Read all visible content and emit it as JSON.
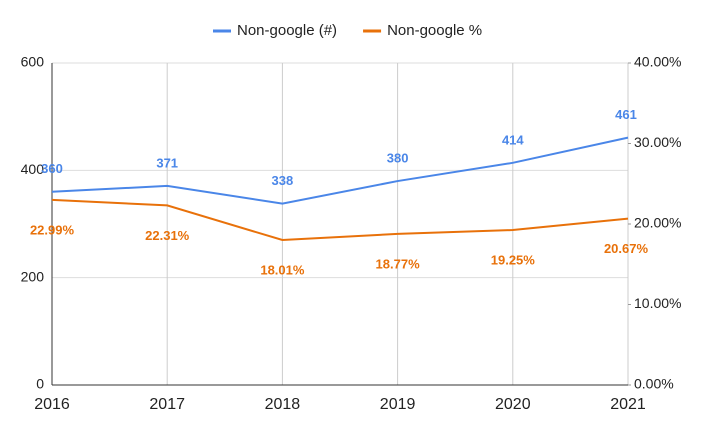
{
  "chart_data": {
    "type": "line",
    "x": [
      2016,
      2017,
      2018,
      2019,
      2020,
      2021
    ],
    "xlim": [
      2016,
      2021
    ],
    "xticks": [
      2016,
      2017,
      2018,
      2019,
      2020,
      2021
    ],
    "ylim": [
      0,
      600
    ],
    "yticks": [
      0,
      200,
      400,
      600
    ],
    "y2lim": [
      0,
      40
    ],
    "y2ticks": [
      {
        "value": 0,
        "label": "0.00%"
      },
      {
        "value": 10,
        "label": "10.00%"
      },
      {
        "value": 20,
        "label": "20.00%"
      },
      {
        "value": 30,
        "label": "30.00%"
      },
      {
        "value": 40,
        "label": "40.00%"
      }
    ],
    "grid": true,
    "legend": "top",
    "series": [
      {
        "name": "Non-google (#)",
        "color": "#4a86e8",
        "values": [
          360,
          371,
          338,
          380,
          414,
          461
        ]
      },
      {
        "name": "Non-google %",
        "color": "#e8710a",
        "axis": "y2",
        "values": [
          22.99,
          22.31,
          18.01,
          18.77,
          19.25,
          20.67
        ],
        "value_labels": [
          "22.99%",
          "22.31%",
          "18.01%",
          "18.77%",
          "19.25%",
          "20.67%"
        ]
      }
    ]
  }
}
